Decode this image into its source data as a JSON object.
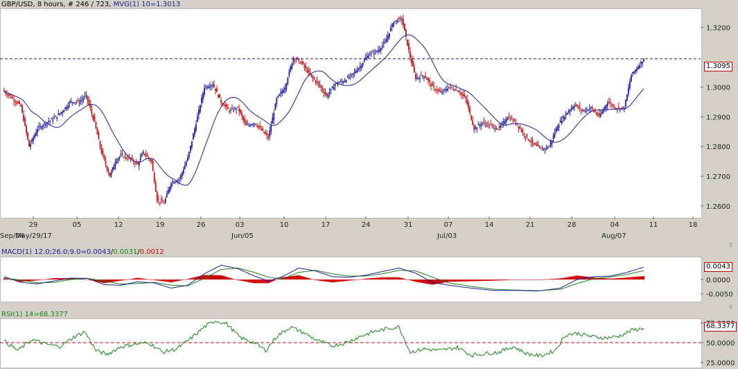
{
  "main": {
    "symbol": "GBP/USD",
    "interval": "8 hours",
    "count_text": "# 246 / 723",
    "mvg_label": "MVG(1) 10=1.3013",
    "current_price": "1.3095",
    "colors": {
      "up": "#1c1c9c",
      "down": "#c41010",
      "ma": "#1c1c9c",
      "dashed": "#1c1c9c"
    }
  },
  "macd": {
    "label_prefix": "MACD(1) 12.0;26.0;9.0=",
    "value_macd": "0.0043",
    "value_signal": "0.0031",
    "value_hist": "0.0012",
    "current": "0.0043",
    "colors": {
      "macd": "#1c1c9c",
      "signal": "#118811",
      "hist": "#d00000"
    }
  },
  "rsi": {
    "label": "RSI(1) 14=68.3377",
    "current": "68.3377",
    "colors": {
      "line": "#118811",
      "ref": "#d00000"
    }
  },
  "chart_data": [
    {
      "type": "candlestick",
      "title": "GBP/USD, 8 hours",
      "ylim": [
        1.2565,
        1.326
      ],
      "y_ticks": [
        "1.3200",
        "1.3000",
        "1.2900",
        "1.2800",
        "1.2700",
        "1.2600"
      ],
      "x_ticks": [
        "29",
        "05",
        "12",
        "19",
        "26",
        "03",
        "10",
        "17",
        "24",
        "31",
        "07",
        "14",
        "21",
        "28",
        "04",
        "11",
        "18"
      ],
      "x_month_labels": [
        "May/29/17",
        "Jun/05",
        "Jul/03",
        "Aug/07",
        "Sep/04"
      ],
      "close_anchors": [
        [
          0,
          1.2985
        ],
        [
          6,
          1.2962
        ],
        [
          12,
          1.2935
        ],
        [
          18,
          1.28
        ],
        [
          24,
          1.286
        ],
        [
          30,
          1.288
        ],
        [
          36,
          1.2895
        ],
        [
          42,
          1.292
        ],
        [
          48,
          1.2952
        ],
        [
          54,
          1.295
        ],
        [
          59,
          1.2972
        ],
        [
          65,
          1.288
        ],
        [
          70,
          1.278
        ],
        [
          76,
          1.27
        ],
        [
          80,
          1.2752
        ],
        [
          84,
          1.277
        ],
        [
          90,
          1.276
        ],
        [
          96,
          1.274
        ],
        [
          100,
          1.278
        ],
        [
          106,
          1.275
        ],
        [
          110,
          1.262
        ],
        [
          115,
          1.261
        ],
        [
          120,
          1.268
        ],
        [
          126,
          1.269
        ],
        [
          132,
          1.276
        ],
        [
          138,
          1.288
        ],
        [
          144,
          1.3
        ],
        [
          150,
          1.301
        ],
        [
          156,
          1.295
        ],
        [
          162,
          1.292
        ],
        [
          168,
          1.293
        ],
        [
          174,
          1.287
        ],
        [
          180,
          1.288
        ],
        [
          186,
          1.285
        ],
        [
          190,
          1.283
        ],
        [
          196,
          1.296
        ],
        [
          202,
          1.3
        ],
        [
          208,
          1.31
        ],
        [
          214,
          1.308
        ],
        [
          220,
          1.304
        ],
        [
          226,
          1.301
        ],
        [
          232,
          1.297
        ],
        [
          238,
          1.301
        ],
        [
          244,
          1.302
        ],
        [
          250,
          1.304
        ],
        [
          256,
          1.307
        ],
        [
          262,
          1.311
        ],
        [
          268,
          1.312
        ],
        [
          274,
          1.315
        ],
        [
          280,
          1.322
        ],
        [
          286,
          1.323
        ],
        [
          292,
          1.31
        ],
        [
          296,
          1.303
        ],
        [
          302,
          1.304
        ],
        [
          308,
          1.3
        ],
        [
          314,
          1.298
        ],
        [
          320,
          1.3
        ],
        [
          326,
          1.299
        ],
        [
          332,
          1.296
        ],
        [
          338,
          1.286
        ],
        [
          344,
          1.288
        ],
        [
          350,
          1.287
        ],
        [
          356,
          1.286
        ],
        [
          362,
          1.29
        ],
        [
          368,
          1.288
        ],
        [
          374,
          1.284
        ],
        [
          380,
          1.281
        ],
        [
          386,
          1.279
        ],
        [
          392,
          1.28
        ],
        [
          398,
          1.287
        ],
        [
          404,
          1.291
        ],
        [
          410,
          1.294
        ],
        [
          416,
          1.292
        ],
        [
          422,
          1.293
        ],
        [
          428,
          1.29
        ],
        [
          434,
          1.295
        ],
        [
          440,
          1.293
        ],
        [
          446,
          1.293
        ],
        [
          451,
          1.304
        ],
        [
          456,
          1.307
        ],
        [
          460,
          1.3095
        ]
      ],
      "ma_period": 10,
      "ma_value": 1.3013
    },
    {
      "type": "macd",
      "ylim": [
        -0.0075,
        0.0075
      ],
      "y_ticks": [
        "0.0000",
        "-0.0050"
      ],
      "macd_anchors": [
        [
          0,
          0.001
        ],
        [
          12,
          -0.001
        ],
        [
          24,
          -0.0015
        ],
        [
          36,
          -0.0005
        ],
        [
          48,
          0.0005
        ],
        [
          60,
          0.0004
        ],
        [
          72,
          -0.0018
        ],
        [
          84,
          -0.002
        ],
        [
          96,
          -0.0008
        ],
        [
          108,
          -0.0012
        ],
        [
          120,
          -0.003
        ],
        [
          132,
          -0.002
        ],
        [
          144,
          0.002
        ],
        [
          156,
          0.005
        ],
        [
          168,
          0.0038
        ],
        [
          180,
          0.0012
        ],
        [
          190,
          -0.0005
        ],
        [
          200,
          0.001
        ],
        [
          212,
          0.004
        ],
        [
          224,
          0.003
        ],
        [
          236,
          0.001
        ],
        [
          248,
          0.0008
        ],
        [
          260,
          0.0015
        ],
        [
          272,
          0.0028
        ],
        [
          284,
          0.004
        ],
        [
          296,
          0.0022
        ],
        [
          308,
          -0.001
        ],
        [
          320,
          -0.002
        ],
        [
          336,
          -0.003
        ],
        [
          352,
          -0.0038
        ],
        [
          368,
          -0.0038
        ],
        [
          384,
          -0.004
        ],
        [
          400,
          -0.003
        ],
        [
          412,
          0.0
        ],
        [
          424,
          0.001
        ],
        [
          436,
          0.0012
        ],
        [
          448,
          0.0025
        ],
        [
          460,
          0.0043
        ]
      ],
      "signal_anchors": [
        [
          0,
          0.0005
        ],
        [
          12,
          -0.0002
        ],
        [
          24,
          -0.0012
        ],
        [
          36,
          -0.001
        ],
        [
          48,
          0.0
        ],
        [
          60,
          0.0004
        ],
        [
          72,
          -0.0005
        ],
        [
          84,
          -0.0016
        ],
        [
          96,
          -0.0014
        ],
        [
          108,
          -0.001
        ],
        [
          120,
          -0.002
        ],
        [
          132,
          -0.0022
        ],
        [
          144,
          0.0004
        ],
        [
          156,
          0.0035
        ],
        [
          168,
          0.004
        ],
        [
          180,
          0.0025
        ],
        [
          190,
          0.0008
        ],
        [
          200,
          0.0002
        ],
        [
          212,
          0.0025
        ],
        [
          224,
          0.0032
        ],
        [
          236,
          0.002
        ],
        [
          248,
          0.0012
        ],
        [
          260,
          0.0012
        ],
        [
          272,
          0.002
        ],
        [
          284,
          0.0032
        ],
        [
          296,
          0.003
        ],
        [
          308,
          0.0008
        ],
        [
          320,
          -0.0012
        ],
        [
          336,
          -0.0024
        ],
        [
          352,
          -0.0034
        ],
        [
          368,
          -0.0037
        ],
        [
          384,
          -0.0039
        ],
        [
          400,
          -0.0034
        ],
        [
          412,
          -0.0014
        ],
        [
          424,
          0.0003
        ],
        [
          436,
          0.0009
        ],
        [
          448,
          0.0018
        ],
        [
          460,
          0.0031
        ]
      ]
    },
    {
      "type": "line",
      "name": "RSI",
      "ylim": [
        20,
        80
      ],
      "y_ticks": [
        "75.0000",
        "50.0000",
        "25.0000"
      ],
      "reference_line": 50,
      "anchors": [
        [
          0,
          52
        ],
        [
          10,
          40
        ],
        [
          20,
          54
        ],
        [
          30,
          48
        ],
        [
          40,
          45
        ],
        [
          50,
          57
        ],
        [
          58,
          64
        ],
        [
          66,
          40
        ],
        [
          74,
          35
        ],
        [
          84,
          45
        ],
        [
          94,
          48
        ],
        [
          104,
          50
        ],
        [
          114,
          38
        ],
        [
          124,
          42
        ],
        [
          134,
          55
        ],
        [
          144,
          70
        ],
        [
          152,
          78
        ],
        [
          160,
          74
        ],
        [
          170,
          56
        ],
        [
          180,
          50
        ],
        [
          188,
          40
        ],
        [
          196,
          58
        ],
        [
          206,
          70
        ],
        [
          216,
          62
        ],
        [
          226,
          52
        ],
        [
          236,
          46
        ],
        [
          246,
          50
        ],
        [
          256,
          58
        ],
        [
          266,
          64
        ],
        [
          276,
          68
        ],
        [
          284,
          70
        ],
        [
          292,
          38
        ],
        [
          302,
          42
        ],
        [
          314,
          40
        ],
        [
          326,
          44
        ],
        [
          336,
          34
        ],
        [
          346,
          36
        ],
        [
          356,
          38
        ],
        [
          366,
          45
        ],
        [
          376,
          36
        ],
        [
          386,
          33
        ],
        [
          396,
          40
        ],
        [
          404,
          60
        ],
        [
          412,
          62
        ],
        [
          422,
          58
        ],
        [
          432,
          56
        ],
        [
          442,
          58
        ],
        [
          452,
          66
        ],
        [
          460,
          68.3377
        ]
      ]
    }
  ]
}
